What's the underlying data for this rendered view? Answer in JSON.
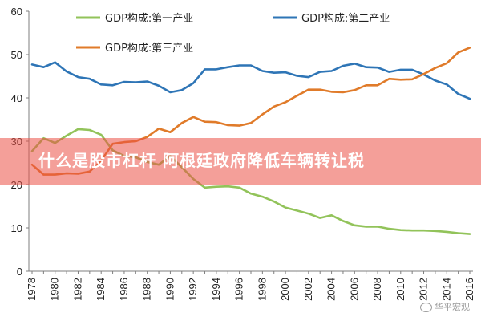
{
  "overlay": {
    "title": "什么是股市杠杆 阿根廷政府降低车辆转让税"
  },
  "watermark": {
    "text": "华平宏观"
  },
  "chart_data": {
    "type": "line",
    "x_tick_labels": [
      "1978",
      "1980",
      "1982",
      "1984",
      "1986",
      "1988",
      "1990",
      "1992",
      "1994",
      "1996",
      "1998",
      "2000",
      "2002",
      "2004",
      "2006",
      "2008",
      "2010",
      "2012",
      "2014",
      "2016"
    ],
    "x_range": [
      1978,
      2016
    ],
    "ylim": [
      0,
      60
    ],
    "y_ticks": [
      0,
      10,
      20,
      30,
      40,
      50,
      60
    ],
    "grid": false,
    "legend_position": "top",
    "series": [
      {
        "name": "GDP构成:第一产业",
        "color": "#92c35a",
        "points": [
          [
            1978,
            27.7
          ],
          [
            1979,
            30.7
          ],
          [
            1980,
            29.6
          ],
          [
            1981,
            31.3
          ],
          [
            1982,
            32.8
          ],
          [
            1983,
            32.6
          ],
          [
            1984,
            31.5
          ],
          [
            1985,
            27.9
          ],
          [
            1986,
            26.6
          ],
          [
            1987,
            26.3
          ],
          [
            1988,
            25.2
          ],
          [
            1989,
            24.6
          ],
          [
            1990,
            26.6
          ],
          [
            1991,
            24.0
          ],
          [
            1992,
            21.3
          ],
          [
            1993,
            19.3
          ],
          [
            1994,
            19.5
          ],
          [
            1995,
            19.6
          ],
          [
            1996,
            19.3
          ],
          [
            1997,
            17.9
          ],
          [
            1998,
            17.2
          ],
          [
            1999,
            16.1
          ],
          [
            2000,
            14.7
          ],
          [
            2001,
            14.0
          ],
          [
            2002,
            13.3
          ],
          [
            2003,
            12.3
          ],
          [
            2004,
            12.9
          ],
          [
            2005,
            11.6
          ],
          [
            2006,
            10.6
          ],
          [
            2007,
            10.3
          ],
          [
            2008,
            10.3
          ],
          [
            2009,
            9.8
          ],
          [
            2010,
            9.5
          ],
          [
            2011,
            9.4
          ],
          [
            2012,
            9.4
          ],
          [
            2013,
            9.3
          ],
          [
            2014,
            9.1
          ],
          [
            2015,
            8.8
          ],
          [
            2016,
            8.6
          ]
        ]
      },
      {
        "name": "GDP构成:第二产业",
        "color": "#2e75b6",
        "points": [
          [
            1978,
            47.7
          ],
          [
            1979,
            47.1
          ],
          [
            1980,
            48.2
          ],
          [
            1981,
            46.1
          ],
          [
            1982,
            44.8
          ],
          [
            1983,
            44.4
          ],
          [
            1984,
            43.1
          ],
          [
            1985,
            42.9
          ],
          [
            1986,
            43.7
          ],
          [
            1987,
            43.6
          ],
          [
            1988,
            43.8
          ],
          [
            1989,
            42.8
          ],
          [
            1990,
            41.3
          ],
          [
            1991,
            41.8
          ],
          [
            1992,
            43.4
          ],
          [
            1993,
            46.6
          ],
          [
            1994,
            46.6
          ],
          [
            1995,
            47.1
          ],
          [
            1996,
            47.5
          ],
          [
            1997,
            47.5
          ],
          [
            1998,
            46.2
          ],
          [
            1999,
            45.8
          ],
          [
            2000,
            45.9
          ],
          [
            2001,
            45.1
          ],
          [
            2002,
            44.8
          ],
          [
            2003,
            46.0
          ],
          [
            2004,
            46.2
          ],
          [
            2005,
            47.4
          ],
          [
            2006,
            47.9
          ],
          [
            2007,
            47.1
          ],
          [
            2008,
            47.0
          ],
          [
            2009,
            46.0
          ],
          [
            2010,
            46.5
          ],
          [
            2011,
            46.5
          ],
          [
            2012,
            45.4
          ],
          [
            2013,
            44.0
          ],
          [
            2014,
            43.1
          ],
          [
            2015,
            40.9
          ],
          [
            2016,
            39.8
          ]
        ]
      },
      {
        "name": "GDP构成:第三产业",
        "color": "#e07b2a",
        "points": [
          [
            1978,
            24.6
          ],
          [
            1979,
            22.3
          ],
          [
            1980,
            22.3
          ],
          [
            1981,
            22.6
          ],
          [
            1982,
            22.5
          ],
          [
            1983,
            23.0
          ],
          [
            1984,
            25.5
          ],
          [
            1985,
            29.4
          ],
          [
            1986,
            29.8
          ],
          [
            1987,
            30.0
          ],
          [
            1988,
            31.0
          ],
          [
            1989,
            32.9
          ],
          [
            1990,
            32.1
          ],
          [
            1991,
            34.2
          ],
          [
            1992,
            35.6
          ],
          [
            1993,
            34.5
          ],
          [
            1994,
            34.4
          ],
          [
            1995,
            33.7
          ],
          [
            1996,
            33.6
          ],
          [
            1997,
            34.2
          ],
          [
            1998,
            36.2
          ],
          [
            1999,
            38.0
          ],
          [
            2000,
            39.0
          ],
          [
            2001,
            40.5
          ],
          [
            2002,
            41.9
          ],
          [
            2003,
            41.9
          ],
          [
            2004,
            41.4
          ],
          [
            2005,
            41.3
          ],
          [
            2006,
            41.8
          ],
          [
            2007,
            42.9
          ],
          [
            2008,
            42.9
          ],
          [
            2009,
            44.4
          ],
          [
            2010,
            44.2
          ],
          [
            2011,
            44.3
          ],
          [
            2012,
            45.5
          ],
          [
            2013,
            46.9
          ],
          [
            2014,
            48.0
          ],
          [
            2015,
            50.5
          ],
          [
            2016,
            51.6
          ]
        ]
      }
    ]
  }
}
